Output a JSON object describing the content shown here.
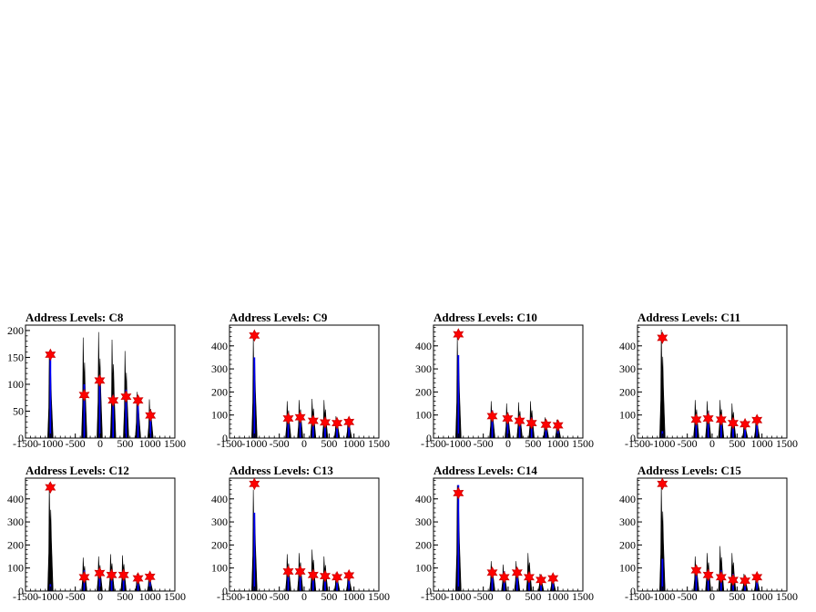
{
  "chart_data": [
    {
      "type": "histogram",
      "title": "Address Levels: C8",
      "xlim": [
        -1500,
        1500
      ],
      "ylim": [
        0,
        210
      ],
      "x_ticks": [
        "-1500",
        "-1000",
        "-500",
        "0",
        "500",
        "1000",
        "1500"
      ],
      "y_ticks": [
        "0",
        "50",
        "100",
        "150",
        "200"
      ],
      "peaks": [
        {
          "x": -1000,
          "blue": 160,
          "black": 160,
          "marker": 155
        },
        {
          "x": -320,
          "blue": 100,
          "black": 187,
          "marker": 80
        },
        {
          "x": -10,
          "blue": 115,
          "black": 197,
          "marker": 107
        },
        {
          "x": 260,
          "blue": 80,
          "black": 183,
          "marker": 70
        },
        {
          "x": 520,
          "blue": 90,
          "black": 162,
          "marker": 77
        },
        {
          "x": 760,
          "blue": 78,
          "black": 86,
          "marker": 70
        },
        {
          "x": 1010,
          "blue": 50,
          "black": 72,
          "marker": 42
        }
      ]
    },
    {
      "type": "histogram",
      "title": "Address Levels: C9",
      "xlim": [
        -1500,
        1500
      ],
      "ylim": [
        0,
        490
      ],
      "x_ticks": [
        "-1500",
        "-1000",
        "-500",
        "0",
        "500",
        "1000",
        "1500"
      ],
      "y_ticks": [
        "0",
        "100",
        "200",
        "300",
        "400"
      ],
      "peaks": [
        {
          "x": -1000,
          "blue": 350,
          "black": 440,
          "marker": 445
        },
        {
          "x": -320,
          "blue": 90,
          "black": 160,
          "marker": 85
        },
        {
          "x": -80,
          "blue": 95,
          "black": 165,
          "marker": 90
        },
        {
          "x": 180,
          "blue": 85,
          "black": 170,
          "marker": 75
        },
        {
          "x": 420,
          "blue": 70,
          "black": 165,
          "marker": 68
        },
        {
          "x": 660,
          "blue": 65,
          "black": 95,
          "marker": 65
        },
        {
          "x": 900,
          "blue": 70,
          "black": 85,
          "marker": 70
        }
      ]
    },
    {
      "type": "histogram",
      "title": "Address Levels: C10",
      "xlim": [
        -1500,
        1500
      ],
      "ylim": [
        0,
        490
      ],
      "x_ticks": [
        "-1500",
        "-1000",
        "-500",
        "0",
        "500",
        "1000",
        "1500"
      ],
      "y_ticks": [
        "0",
        "100",
        "200",
        "300",
        "400"
      ],
      "peaks": [
        {
          "x": -1000,
          "blue": 360,
          "black": 440,
          "marker": 450
        },
        {
          "x": -320,
          "blue": 120,
          "black": 160,
          "marker": 95
        },
        {
          "x": -10,
          "blue": 100,
          "black": 150,
          "marker": 85
        },
        {
          "x": 230,
          "blue": 95,
          "black": 155,
          "marker": 75
        },
        {
          "x": 470,
          "blue": 90,
          "black": 160,
          "marker": 65
        },
        {
          "x": 760,
          "blue": 65,
          "black": 90,
          "marker": 58
        },
        {
          "x": 1000,
          "blue": 60,
          "black": 80,
          "marker": 55
        }
      ]
    },
    {
      "type": "histogram",
      "title": "Address Levels: C11",
      "xlim": [
        -1500,
        1500
      ],
      "ylim": [
        0,
        490
      ],
      "x_ticks": [
        "-1500",
        "-1000",
        "-500",
        "0",
        "500",
        "1000",
        "1500"
      ],
      "y_ticks": [
        "0",
        "100",
        "200",
        "300",
        "400"
      ],
      "peaks": [
        {
          "x": -1000,
          "blue": 30,
          "black": 470,
          "marker": 435
        },
        {
          "x": -320,
          "blue": 90,
          "black": 165,
          "marker": 80
        },
        {
          "x": -80,
          "blue": 110,
          "black": 160,
          "marker": 85
        },
        {
          "x": 180,
          "blue": 90,
          "black": 165,
          "marker": 80
        },
        {
          "x": 420,
          "blue": 80,
          "black": 150,
          "marker": 65
        },
        {
          "x": 660,
          "blue": 60,
          "black": 70,
          "marker": 60
        },
        {
          "x": 900,
          "blue": 75,
          "black": 90,
          "marker": 78
        }
      ]
    },
    {
      "type": "histogram",
      "title": "Address Levels: C12",
      "xlim": [
        -1500,
        1500
      ],
      "ylim": [
        0,
        490
      ],
      "x_ticks": [
        "-1500",
        "-1000",
        "-500",
        "0",
        "500",
        "1000",
        "1500"
      ],
      "y_ticks": [
        "0",
        "100",
        "200",
        "300",
        "400"
      ],
      "peaks": [
        {
          "x": -1000,
          "blue": 30,
          "black": 470,
          "marker": 450
        },
        {
          "x": -320,
          "blue": 90,
          "black": 145,
          "marker": 60
        },
        {
          "x": -10,
          "blue": 90,
          "black": 150,
          "marker": 78
        },
        {
          "x": 230,
          "blue": 85,
          "black": 160,
          "marker": 70
        },
        {
          "x": 470,
          "blue": 80,
          "black": 155,
          "marker": 70
        },
        {
          "x": 760,
          "blue": 60,
          "black": 75,
          "marker": 55
        },
        {
          "x": 1000,
          "blue": 60,
          "black": 70,
          "marker": 62
        }
      ]
    },
    {
      "type": "histogram",
      "title": "Address Levels: C13",
      "xlim": [
        -1500,
        1500
      ],
      "ylim": [
        0,
        490
      ],
      "x_ticks": [
        "-1500",
        "-1000",
        "-500",
        "0",
        "500",
        "1000",
        "1500"
      ],
      "y_ticks": [
        "0",
        "100",
        "200",
        "300",
        "400"
      ],
      "peaks": [
        {
          "x": -1000,
          "blue": 340,
          "black": 440,
          "marker": 465
        },
        {
          "x": -320,
          "blue": 90,
          "black": 160,
          "marker": 85
        },
        {
          "x": -80,
          "blue": 95,
          "black": 165,
          "marker": 85
        },
        {
          "x": 180,
          "blue": 85,
          "black": 180,
          "marker": 70
        },
        {
          "x": 420,
          "blue": 80,
          "black": 150,
          "marker": 65
        },
        {
          "x": 660,
          "blue": 60,
          "black": 80,
          "marker": 60
        },
        {
          "x": 900,
          "blue": 65,
          "black": 75,
          "marker": 68
        }
      ]
    },
    {
      "type": "histogram",
      "title": "Address Levels: C14",
      "xlim": [
        -1500,
        1500
      ],
      "ylim": [
        0,
        490
      ],
      "x_ticks": [
        "-1500",
        "-1000",
        "-500",
        "0",
        "500",
        "1000",
        "1500"
      ],
      "y_ticks": [
        "0",
        "100",
        "200",
        "300",
        "400"
      ],
      "peaks": [
        {
          "x": -1000,
          "blue": 460,
          "black": 460,
          "marker": 425
        },
        {
          "x": -320,
          "blue": 90,
          "black": 130,
          "marker": 80
        },
        {
          "x": -80,
          "blue": 85,
          "black": 115,
          "marker": 60
        },
        {
          "x": 180,
          "blue": 90,
          "black": 130,
          "marker": 80
        },
        {
          "x": 420,
          "blue": 80,
          "black": 165,
          "marker": 60
        },
        {
          "x": 660,
          "blue": 60,
          "black": 75,
          "marker": 48
        },
        {
          "x": 900,
          "blue": 55,
          "black": 70,
          "marker": 55
        }
      ]
    },
    {
      "type": "histogram",
      "title": "Address Levels: C15",
      "xlim": [
        -1500,
        1500
      ],
      "ylim": [
        0,
        490
      ],
      "x_ticks": [
        "-1500",
        "-1000",
        "-500",
        "0",
        "500",
        "1000",
        "1500"
      ],
      "y_ticks": [
        "0",
        "100",
        "200",
        "300",
        "400"
      ],
      "peaks": [
        {
          "x": -1000,
          "blue": 140,
          "black": 460,
          "marker": 465
        },
        {
          "x": -320,
          "blue": 95,
          "black": 150,
          "marker": 90
        },
        {
          "x": -80,
          "blue": 85,
          "black": 165,
          "marker": 70
        },
        {
          "x": 180,
          "blue": 90,
          "black": 195,
          "marker": 60
        },
        {
          "x": 420,
          "blue": 75,
          "black": 165,
          "marker": 48
        },
        {
          "x": 660,
          "blue": 55,
          "black": 75,
          "marker": 45
        },
        {
          "x": 900,
          "blue": 50,
          "black": 70,
          "marker": 60
        }
      ]
    }
  ],
  "colors": {
    "hist_black": "#000000",
    "hist_blue": "#0000ff",
    "marker_fill": "#ff0000",
    "marker_stroke": "#cc0000",
    "frame": "#000000"
  }
}
